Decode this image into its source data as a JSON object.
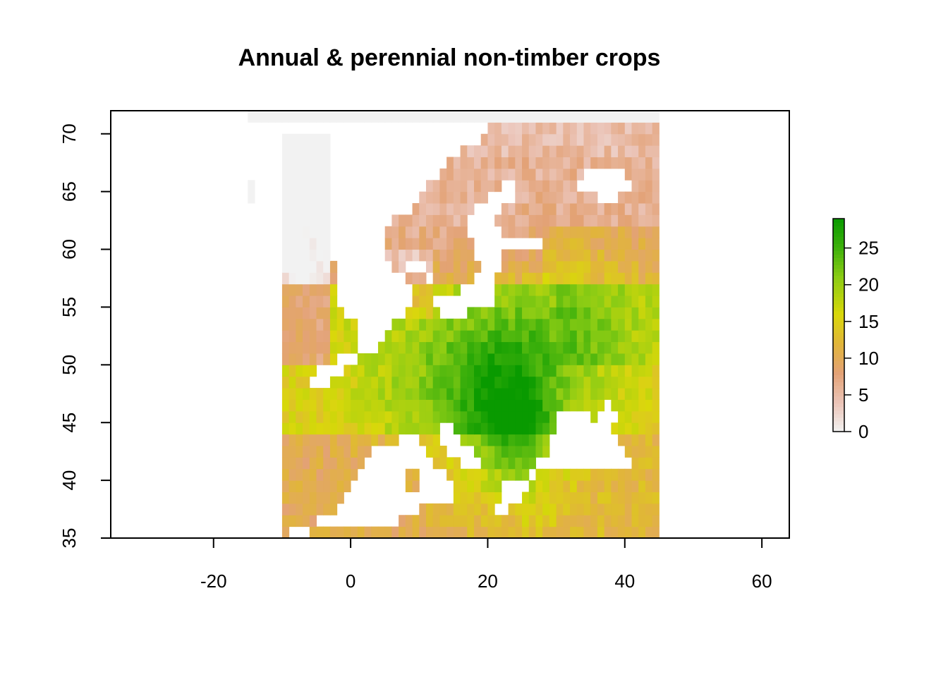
{
  "title": "Annual & perennial non-timber crops",
  "map": {
    "x_axis": {
      "range": [
        -35,
        64
      ],
      "ticks": [
        -20,
        0,
        20,
        40,
        60
      ],
      "tick_labels": [
        "-20",
        "0",
        "20",
        "40",
        "60"
      ]
    },
    "y_axis": {
      "range": [
        35,
        72
      ],
      "ticks": [
        35,
        40,
        45,
        50,
        55,
        60,
        65,
        70
      ],
      "tick_labels": [
        "35",
        "40",
        "45",
        "50",
        "55",
        "60",
        "65",
        "70"
      ]
    },
    "raster_extent": {
      "lon": [
        -15,
        45
      ],
      "lat": [
        35,
        72
      ]
    },
    "cell_size_deg": 1,
    "no_data_color": "#f2f2f2",
    "palette_stops": [
      {
        "value": 0,
        "color": "#f2f2f2"
      },
      {
        "value": 4,
        "color": "#ebc4b8"
      },
      {
        "value": 8,
        "color": "#e3a276"
      },
      {
        "value": 12,
        "color": "#e1b53a"
      },
      {
        "value": 16,
        "color": "#d9d80a"
      },
      {
        "value": 21,
        "color": "#8ccc14"
      },
      {
        "value": 25,
        "color": "#3fb10c"
      },
      {
        "value": 29,
        "color": "#099a00"
      }
    ]
  },
  "legend": {
    "range": [
      0,
      29
    ],
    "ticks": [
      0,
      5,
      10,
      15,
      20,
      25
    ],
    "tick_labels": [
      "0",
      "5",
      "10",
      "15",
      "20",
      "25"
    ]
  }
}
